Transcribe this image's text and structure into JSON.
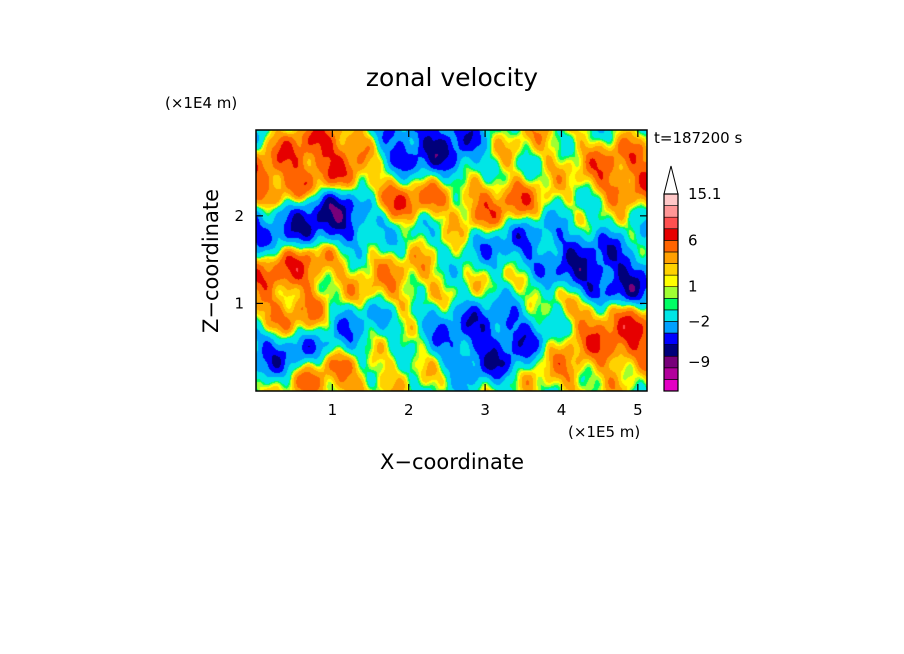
{
  "chart_data": {
    "type": "heatmap",
    "title": "zonal velocity",
    "xlabel": "X−coordinate",
    "ylabel": "Z−coordinate",
    "x_scale_label": "(×1E5 m)",
    "y_scale_label": "(×1E4 m)",
    "time_label": "t=187200 s",
    "xlim": [
      0.0,
      5.12
    ],
    "ylim": [
      0.0,
      2.98
    ],
    "xticks": [
      1,
      2,
      3,
      4,
      5
    ],
    "yticks": [
      1,
      2
    ],
    "colorbar": {
      "labels": [
        {
          "text": "15.1",
          "value": 15.1
        },
        {
          "text": "6",
          "value": 6
        },
        {
          "text": "1",
          "value": 1
        },
        {
          "text": "−2",
          "value": -2
        },
        {
          "text": "−9",
          "value": -9
        }
      ],
      "levels": [
        {
          "value": -12,
          "color": "#e400c4"
        },
        {
          "value": -10,
          "color": "#b2009c"
        },
        {
          "value": -8,
          "color": "#78007a"
        },
        {
          "value": -6,
          "color": "#00007a"
        },
        {
          "value": -4,
          "color": "#0000ff"
        },
        {
          "value": -2,
          "color": "#00a0ff"
        },
        {
          "value": 0,
          "color": "#00e6e6"
        },
        {
          "value": 0.5,
          "color": "#00ff64"
        },
        {
          "value": 1,
          "color": "#a0ff32"
        },
        {
          "value": 1.5,
          "color": "#ffff00"
        },
        {
          "value": 2.5,
          "color": "#ffd200"
        },
        {
          "value": 4,
          "color": "#ffa000"
        },
        {
          "value": 6,
          "color": "#ff6400"
        },
        {
          "value": 8,
          "color": "#e60000"
        },
        {
          "value": 11,
          "color": "#ff5050"
        },
        {
          "value": 13,
          "color": "#ff9696"
        },
        {
          "value": 15.1,
          "color": "#ffc8c8"
        }
      ],
      "extend_arrow_color": "#ffffff"
    },
    "field_features": [
      {
        "x": 2.0,
        "z": 2.35,
        "value": 7
      },
      {
        "x": 0.3,
        "z": 2.4,
        "value": 6
      },
      {
        "x": 0.9,
        "z": 2.7,
        "value": 7
      },
      {
        "x": 2.1,
        "z": 2.55,
        "value": -7
      },
      {
        "x": 2.3,
        "z": 2.85,
        "value": -6
      },
      {
        "x": 0.9,
        "z": 2.0,
        "value": -7
      },
      {
        "x": 0.2,
        "z": 1.8,
        "value": -5
      },
      {
        "x": 4.6,
        "z": 1.3,
        "value": -7
      },
      {
        "x": 4.2,
        "z": 1.5,
        "value": -5
      },
      {
        "x": 3.5,
        "z": 1.75,
        "value": -4
      },
      {
        "x": 4.9,
        "z": 2.5,
        "value": 6
      },
      {
        "x": 3.2,
        "z": 2.1,
        "value": 5
      },
      {
        "x": 0.4,
        "z": 1.45,
        "value": 6
      },
      {
        "x": 1.8,
        "z": 1.25,
        "value": 3
      },
      {
        "x": 3.6,
        "z": 1.0,
        "value": 3
      },
      {
        "x": 0.4,
        "z": 0.85,
        "value": 5
      },
      {
        "x": 4.8,
        "z": 0.6,
        "value": 7
      },
      {
        "x": 4.4,
        "z": 0.75,
        "value": 4
      },
      {
        "x": 2.5,
        "z": 0.65,
        "value": -4
      },
      {
        "x": 3.0,
        "z": 0.5,
        "value": -6
      },
      {
        "x": 3.45,
        "z": 0.85,
        "value": -7
      },
      {
        "x": 2.0,
        "z": 0.5,
        "value": 2
      },
      {
        "x": 4.2,
        "z": 0.25,
        "value": 3
      },
      {
        "x": 1.0,
        "z": 0.15,
        "value": 4
      },
      {
        "x": 0.3,
        "z": 0.5,
        "value": -5
      },
      {
        "x": 1.3,
        "z": 0.7,
        "value": -3
      },
      {
        "x": 3.8,
        "z": 2.8,
        "value": 2
      }
    ]
  }
}
